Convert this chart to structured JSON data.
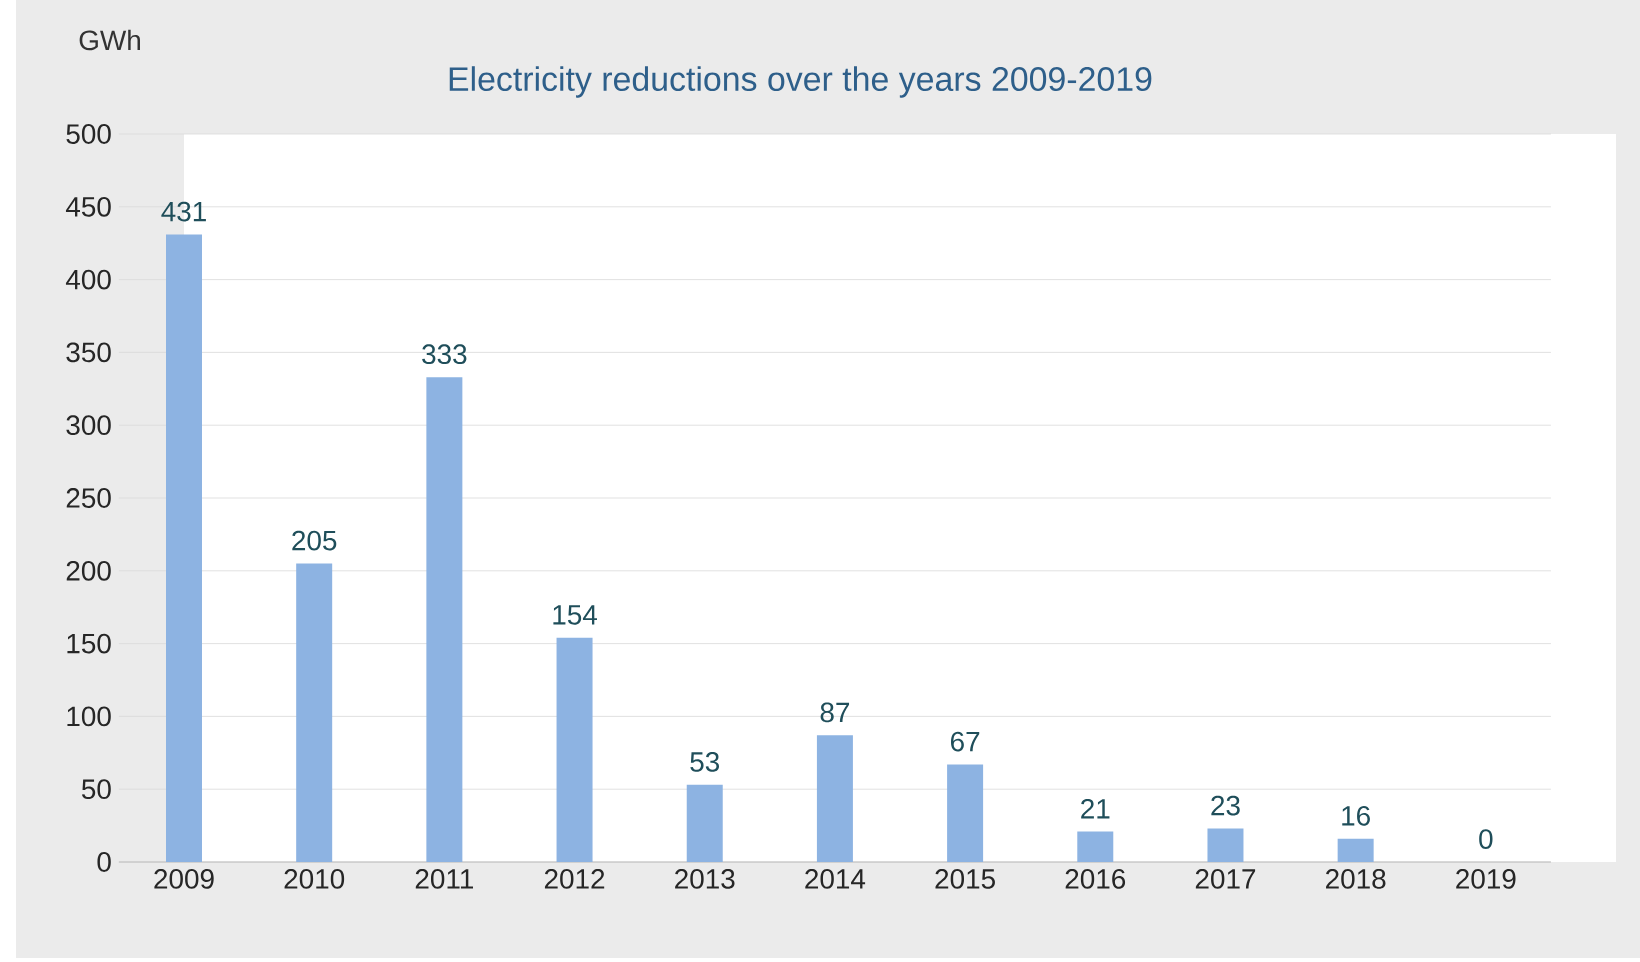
{
  "chart_data": {
    "type": "bar",
    "title": "Electricity reductions over the years 2009-2019",
    "ylabel": "GWh",
    "categories": [
      "2009",
      "2010",
      "2011",
      "2012",
      "2013",
      "2014",
      "2015",
      "2016",
      "2017",
      "2018",
      "2019"
    ],
    "values": [
      431,
      205,
      333,
      154,
      53,
      87,
      67,
      21,
      23,
      16,
      0
    ],
    "color": "#8db3e2",
    "ylim": [
      0,
      500
    ],
    "yticks": [
      0,
      50,
      100,
      150,
      200,
      250,
      300,
      350,
      400,
      450,
      500
    ],
    "grid": "y",
    "data_labels": true
  }
}
